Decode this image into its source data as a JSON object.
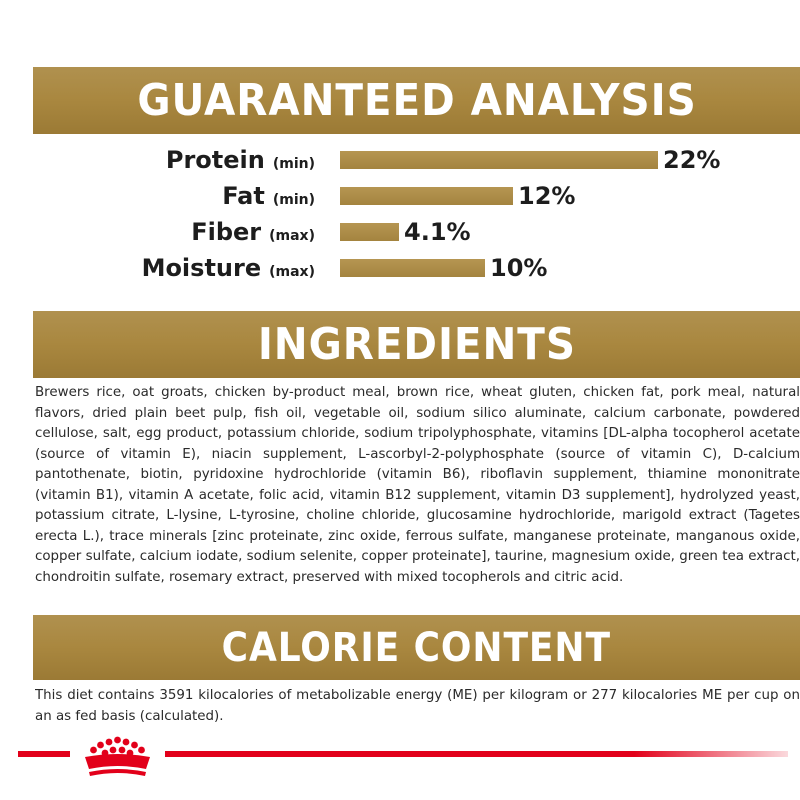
{
  "analysis": {
    "title": "GUARANTEED ANALYSIS",
    "rows": [
      {
        "name": "Protein",
        "qualifier": "(min)",
        "value": "22%",
        "percent": 22
      },
      {
        "name": "Fat",
        "qualifier": "(min)",
        "value": "12%",
        "percent": 12
      },
      {
        "name": "Fiber",
        "qualifier": "(max)",
        "value": "4.1%",
        "percent": 4.1
      },
      {
        "name": "Moisture",
        "qualifier": "(max)",
        "value": "10%",
        "percent": 10
      }
    ]
  },
  "ingredients": {
    "title": "INGREDIENTS",
    "text": "Brewers rice, oat groats, chicken by-product meal, brown rice, wheat gluten, chicken fat, pork meal, natural flavors, dried plain beet pulp, fish oil, vegetable oil, sodium silico aluminate, calcium carbonate, powdered cellulose, salt, egg product, potassium chloride, sodium tripolyphosphate, vitamins [DL-alpha tocopherol acetate (source of vitamin E), niacin supplement, L-ascorbyl-2-polyphosphate (source of vitamin C), D-calcium pantothenate, biotin, pyridoxine hydrochloride (vitamin B6), riboflavin supplement, thiamine mononitrate (vitamin B1), vitamin A acetate, folic acid, vitamin B12 supplement, vitamin D3 supplement], hydrolyzed yeast, potassium citrate, L-lysine, L-tyrosine, choline chloride, glucosamine hydrochloride, marigold extract (Tagetes erecta L.), trace minerals [zinc proteinate, zinc oxide, ferrous sulfate, manganese proteinate, manganous oxide, copper sulfate, calcium iodate, sodium selenite, copper proteinate], taurine, magnesium oxide, green tea extract, chondroitin sulfate, rosemary extract, preserved with mixed tocopherols and citric acid."
  },
  "calorie": {
    "title": "CALORIE CONTENT",
    "text": "This diet contains 3591 kilocalories of metabolizable energy (ME) per kilogram or 277 kilocalories ME per cup on an as fed basis (calculated)."
  },
  "footer": {
    "logo_name": "royal-crown-logo",
    "accent_color": "#e2001a",
    "brand_gold": "#a9873f"
  }
}
